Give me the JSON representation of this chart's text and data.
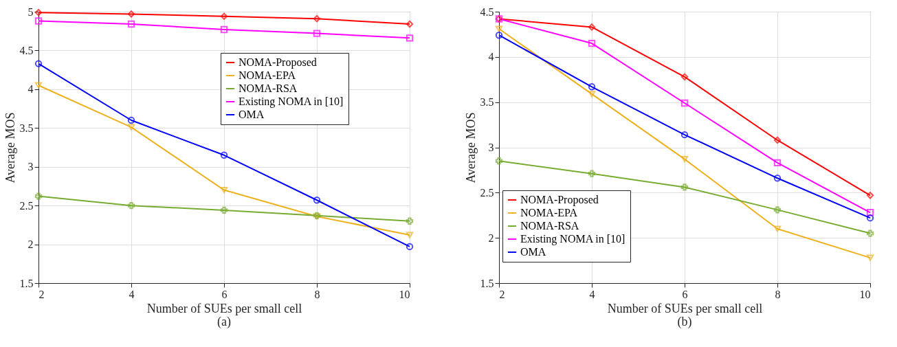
{
  "chart_data": [
    {
      "type": "line",
      "xlabel": "Number of SUEs per small cell",
      "ylabel": "Average MOS",
      "annotations": [
        "(a)"
      ],
      "x": [
        2,
        4,
        6,
        8,
        10
      ],
      "xlim": [
        2,
        10
      ],
      "xticks": [
        2,
        4,
        6,
        8,
        10
      ],
      "ylim": [
        1.5,
        5
      ],
      "yticks": [
        1.5,
        2,
        2.5,
        3,
        3.5,
        4,
        4.5,
        5
      ],
      "grid": true,
      "legend": "right",
      "line_style": "solid",
      "series": [
        {
          "name": "NOMA-Proposed",
          "color": "#ff0000",
          "marker": "diamond",
          "values": [
            4.99,
            4.97,
            4.94,
            4.91,
            4.84
          ]
        },
        {
          "name": "NOMA-EPA",
          "color": "#edb120",
          "marker": "triangle",
          "values": [
            4.05,
            3.51,
            2.7,
            2.36,
            2.12
          ]
        },
        {
          "name": "NOMA-RSA",
          "color": "#77ac30",
          "marker": "cross",
          "values": [
            2.62,
            2.5,
            2.44,
            2.37,
            2.3
          ]
        },
        {
          "name": "Existing NOMA in [10]",
          "color": "#ff00ff",
          "marker": "square",
          "values": [
            4.88,
            4.84,
            4.77,
            4.72,
            4.66
          ]
        },
        {
          "name": "OMA",
          "color": "#0000ff",
          "marker": "circle",
          "values": [
            4.33,
            3.6,
            3.15,
            2.57,
            1.97
          ]
        }
      ]
    },
    {
      "type": "line",
      "xlabel": "Number of SUEs per small cell",
      "ylabel": "Average MOS",
      "annotations": [
        "(b)"
      ],
      "x": [
        2,
        4,
        6,
        8,
        10
      ],
      "xlim": [
        2,
        10
      ],
      "xticks": [
        2,
        4,
        6,
        8,
        10
      ],
      "ylim": [
        1.5,
        4.5
      ],
      "yticks": [
        1.5,
        2,
        2.5,
        3,
        3.5,
        4,
        4.5
      ],
      "grid": true,
      "legend": "bottom left",
      "line_style": "solid",
      "series": [
        {
          "name": "NOMA-Proposed",
          "color": "#ff0000",
          "marker": "diamond",
          "values": [
            4.42,
            4.33,
            3.78,
            3.08,
            2.47
          ]
        },
        {
          "name": "NOMA-EPA",
          "color": "#edb120",
          "marker": "triangle",
          "values": [
            4.31,
            3.59,
            2.87,
            2.1,
            1.78
          ]
        },
        {
          "name": "NOMA-RSA",
          "color": "#77ac30",
          "marker": "cross",
          "values": [
            2.85,
            2.71,
            2.56,
            2.31,
            2.05
          ]
        },
        {
          "name": "Existing NOMA in [10]",
          "color": "#ff00ff",
          "marker": "square",
          "values": [
            4.42,
            4.15,
            3.49,
            2.83,
            2.28
          ]
        },
        {
          "name": "OMA",
          "color": "#0000ff",
          "marker": "circle",
          "values": [
            4.24,
            3.67,
            3.14,
            2.66,
            2.22
          ]
        }
      ]
    }
  ]
}
